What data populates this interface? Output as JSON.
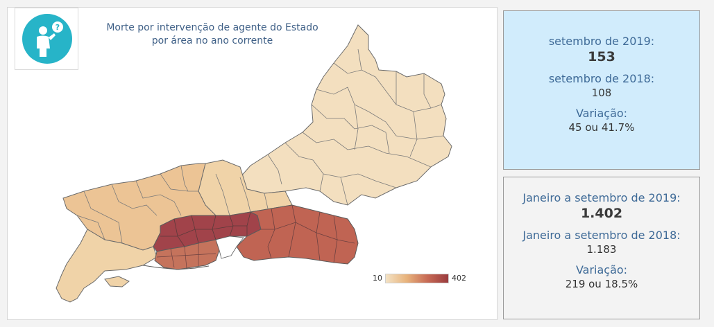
{
  "map": {
    "title_line1": "Morte por intervenção de agente do Estado",
    "title_line2": "por área no ano corrente",
    "legend_min": "10",
    "legend_max": "402",
    "color_scale": [
      "#f3e2c4",
      "#e8b37c",
      "#c76a55",
      "#9a3b3e"
    ],
    "help_icon": "person-question-icon"
  },
  "monthly": {
    "label_current": "setembro de 2019:",
    "value_current": "153",
    "label_previous": "setembro de 2018:",
    "value_previous": "108",
    "label_variation": "Variação:",
    "value_variation": "45 ou 41.7%",
    "background": "#d1ecfc"
  },
  "ytd": {
    "label_current": "Janeiro a setembro de 2019:",
    "value_current": "1.402",
    "label_previous": "Janeiro a setembro de 2018:",
    "value_previous": "1.183",
    "label_variation": "Variação:",
    "value_variation": "219 ou 18.5%",
    "background": "#f3f3f3"
  }
}
